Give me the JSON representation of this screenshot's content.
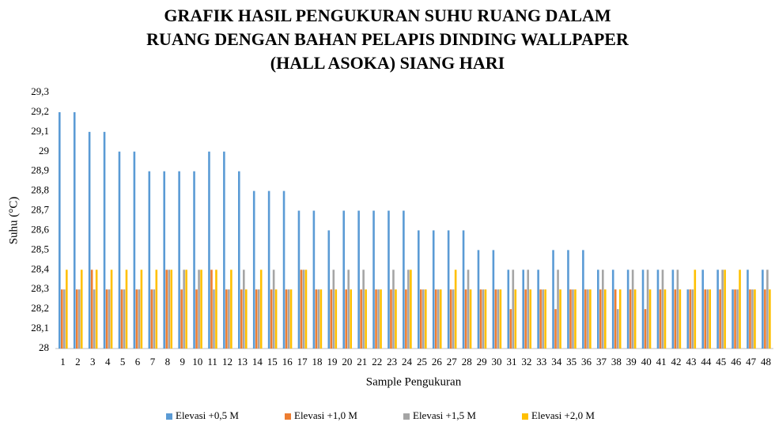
{
  "chart_data": {
    "type": "bar",
    "title": [
      "GRAFIK HASIL PENGUKURAN SUHU RUANG DALAM",
      "RUANG DENGAN BAHAN PELAPIS DINDING WALLPAPER",
      "(HALL ASOKA) SIANG HARI"
    ],
    "x_label": "Sample Pengukuran",
    "y_label": "Suhu (°C)",
    "categories": [
      "1",
      "2",
      "3",
      "4",
      "5",
      "6",
      "7",
      "8",
      "9",
      "10",
      "11",
      "12",
      "13",
      "14",
      "15",
      "16",
      "17",
      "18",
      "19",
      "20",
      "21",
      "22",
      "23",
      "24",
      "25",
      "26",
      "27",
      "28",
      "29",
      "30",
      "31",
      "32",
      "33",
      "34",
      "35",
      "36",
      "37",
      "38",
      "39",
      "40",
      "41",
      "42",
      "43",
      "44",
      "45",
      "46",
      "47",
      "48"
    ],
    "series": [
      {
        "name": "Elevasi +0,5 M",
        "color": "#5b9bd5",
        "values": [
          29.2,
          29.2,
          29.1,
          29.1,
          29.0,
          29.0,
          28.9,
          28.9,
          28.9,
          28.9,
          29.0,
          29.0,
          28.9,
          28.8,
          28.8,
          28.8,
          28.7,
          28.7,
          28.6,
          28.7,
          28.7,
          28.7,
          28.7,
          28.7,
          28.6,
          28.6,
          28.6,
          28.6,
          28.5,
          28.5,
          28.4,
          28.4,
          28.4,
          28.5,
          28.5,
          28.5,
          28.4,
          28.4,
          28.4,
          28.4,
          28.4,
          28.4,
          28.3,
          28.4,
          28.4,
          28.3,
          28.4,
          28.4
        ]
      },
      {
        "name": "Elevasi +1,0 M",
        "color": "#ed7d31",
        "values": [
          28.3,
          28.3,
          28.4,
          28.3,
          28.3,
          28.3,
          28.3,
          28.4,
          28.3,
          28.3,
          28.4,
          28.3,
          28.3,
          28.3,
          28.3,
          28.3,
          28.4,
          28.3,
          28.3,
          28.3,
          28.3,
          28.3,
          28.3,
          28.3,
          28.3,
          28.3,
          28.3,
          28.3,
          28.3,
          28.3,
          28.2,
          28.3,
          28.3,
          28.2,
          28.3,
          28.3,
          28.3,
          28.3,
          28.3,
          28.2,
          28.3,
          28.3,
          28.3,
          28.3,
          28.3,
          28.3,
          28.3,
          28.3
        ]
      },
      {
        "name": "Elevasi +1,5 M",
        "color": "#a5a5a5",
        "values": [
          28.3,
          28.3,
          28.3,
          28.3,
          28.3,
          28.3,
          28.3,
          28.4,
          28.4,
          28.4,
          28.3,
          28.3,
          28.4,
          28.3,
          28.4,
          28.3,
          28.4,
          28.3,
          28.4,
          28.4,
          28.4,
          28.3,
          28.4,
          28.4,
          28.3,
          28.3,
          28.3,
          28.4,
          28.3,
          28.3,
          28.4,
          28.4,
          28.3,
          28.4,
          28.3,
          28.3,
          28.4,
          28.2,
          28.4,
          28.4,
          28.4,
          28.4,
          28.3,
          28.3,
          28.4,
          28.3,
          28.3,
          28.4
        ]
      },
      {
        "name": "Elevasi +2,0 M",
        "color": "#ffc000",
        "values": [
          28.4,
          28.4,
          28.4,
          28.4,
          28.4,
          28.4,
          28.4,
          28.4,
          28.4,
          28.4,
          28.4,
          28.4,
          28.3,
          28.4,
          28.3,
          28.3,
          28.4,
          28.3,
          28.3,
          28.3,
          28.3,
          28.3,
          28.3,
          28.4,
          28.3,
          28.3,
          28.4,
          28.3,
          28.3,
          28.3,
          28.3,
          28.3,
          28.3,
          28.3,
          28.3,
          28.3,
          28.3,
          28.3,
          28.3,
          28.3,
          28.3,
          28.3,
          28.4,
          28.3,
          28.4,
          28.4,
          28.3,
          28.3
        ]
      }
    ],
    "ylim": [
      28,
      29.3
    ],
    "yticks": [
      28,
      {
        "value": 28.1,
        "label": "28,1"
      },
      {
        "value": 28.2,
        "label": "28,2"
      },
      {
        "value": 28.3,
        "label": "28,3"
      },
      {
        "value": 28.4,
        "label": "28,4"
      },
      {
        "value": 28.5,
        "label": "28,5"
      },
      {
        "value": 28.6,
        "label": "28,6"
      },
      {
        "value": 28.7,
        "label": "28,7"
      },
      {
        "value": 28.8,
        "label": "28,8"
      },
      {
        "value": 28.9,
        "label": "28,9"
      },
      29,
      {
        "value": 29.1,
        "label": "29,1"
      },
      {
        "value": 29.2,
        "label": "29,2"
      },
      {
        "value": 29.3,
        "label": "29,3"
      }
    ],
    "grid": false,
    "legend": "bottom"
  }
}
